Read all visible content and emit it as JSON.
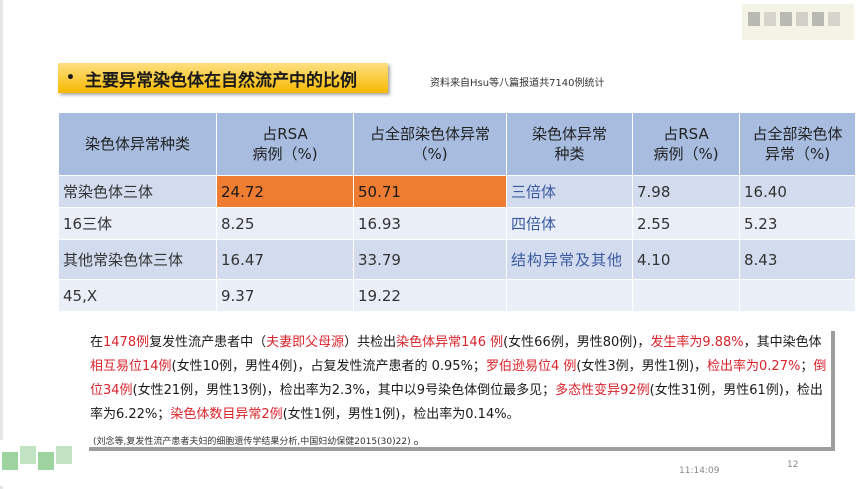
{
  "title": {
    "bullet": "•",
    "text": "主要异常染色体在自然流产中的比例"
  },
  "source_note": "资料来自Hsu等八篇报道共7140例统计",
  "table": {
    "headers": [
      "染色体异常种类",
      "占RSA\n病例（%)",
      "占全部染色体异常\n（%)",
      "染色体异常\n种类",
      "占RSA\n病例（%)",
      "占全部染色体\n异常（%)"
    ],
    "rows": [
      [
        "常染色体三体",
        "24.72",
        "50.71",
        "三倍体",
        "7.98",
        "16.40"
      ],
      [
        "16三体",
        "8.25",
        "16.93",
        "四倍体",
        "2.55",
        "5.23"
      ],
      [
        "其他常染色体三体",
        "16.47",
        "33.79",
        "结构异常及其他",
        "4.10",
        "8.43"
      ],
      [
        "45,X",
        "9.37",
        "19.22",
        "",
        "",
        ""
      ]
    ]
  },
  "summary": {
    "segments": [
      {
        "text": "在",
        "red": false
      },
      {
        "text": "1478例",
        "red": true
      },
      {
        "text": "复发性流产患者中（",
        "red": false
      },
      {
        "text": "夫妻即父母源",
        "red": true
      },
      {
        "text": "）共检出",
        "red": false
      },
      {
        "text": "染色体异常146 例",
        "red": true
      },
      {
        "text": "(女性66例，男性80例)，",
        "red": false
      },
      {
        "text": "发生率为9.88%",
        "red": true
      },
      {
        "text": "，其中染色体",
        "red": false
      },
      {
        "text": "相互易位14例",
        "red": true
      },
      {
        "text": "(女性10例，男性4例)，占复发性流产患者的 0.95%；",
        "red": false
      },
      {
        "text": "罗伯逊易位4 例",
        "red": true
      },
      {
        "text": "(女性3例，男性1例)，",
        "red": false
      },
      {
        "text": "检出率为0.27%",
        "red": true
      },
      {
        "text": "；",
        "red": false
      },
      {
        "text": "倒位34例",
        "red": true
      },
      {
        "text": "(女性21例，男性13例)，检出率为2.3%，其中以9号染色体倒位最多见；",
        "red": false
      },
      {
        "text": "多态性变异92例",
        "red": true
      },
      {
        "text": "(女性31例，男性61例)，检出率为6.22%；",
        "red": false
      },
      {
        "text": "染色体数目异常2例",
        "red": true
      },
      {
        "text": "(女性1例，男性1例)，检出率为0.14%。",
        "red": false
      }
    ],
    "citation": "(刘念等,复发性流产患者夫妇的细胞遗传学结果分析,中国妇幼保健2015(30)22)",
    "citation_end": "。"
  },
  "footer": {
    "timestamp": "11:14:09",
    "page_number": "12"
  },
  "colors": {
    "title_bg": "#f6b900",
    "header_bg": "#a7bcdf",
    "highlight": "#ee7d31",
    "red_text": "#d9232b",
    "blue_text": "#3a5aa0"
  }
}
